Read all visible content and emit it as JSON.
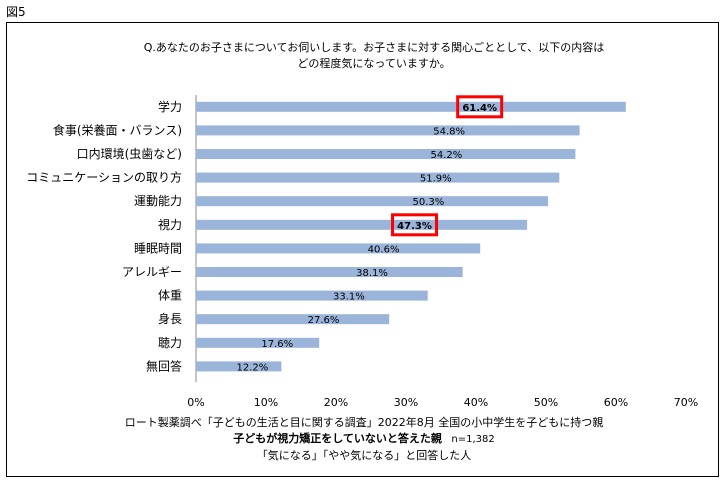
{
  "figure_label": "図5",
  "chart_data": {
    "type": "bar",
    "orientation": "horizontal",
    "title_lines": [
      "Q.あなたのお子さまについてお伺いします。お子さまに対する関心ごととして、以下の内容は",
      "どの程度気になっていますか。"
    ],
    "categories": [
      "学力",
      "食事(栄養面・バランス)",
      "口内環境(虫歯など)",
      "コミュニケーションの取り方",
      "運動能力",
      "視力",
      "睡眠時間",
      "アレルギー",
      "体重",
      "身長",
      "聴力",
      "無回答"
    ],
    "values": [
      61.4,
      54.8,
      54.2,
      51.9,
      50.3,
      47.3,
      40.6,
      38.1,
      33.1,
      27.6,
      17.6,
      12.2
    ],
    "value_labels": [
      "61.4%",
      "54.8%",
      "54.2%",
      "51.9%",
      "50.3%",
      "47.3%",
      "40.6%",
      "38.1%",
      "33.1%",
      "27.6%",
      "17.6%",
      "12.2%"
    ],
    "highlighted": [
      "学力",
      "視力"
    ],
    "xlim": [
      0,
      70
    ],
    "xticks": [
      0,
      10,
      20,
      30,
      40,
      50,
      60,
      70
    ],
    "xtick_labels": [
      "0%",
      "10%",
      "20%",
      "30%",
      "40%",
      "50%",
      "60%",
      "70%"
    ],
    "bar_color": "#9bb4d9",
    "highlight_color": "#ff0000"
  },
  "footer": {
    "line1": "ロート製薬調べ「子どもの生活と目に関する調査」2022年8月 全国の小中学生を子どもに持つ親",
    "line2_bold": "子どもが視力矯正をしていないと答えた親",
    "line2_n": "n=1,382",
    "line3": "「気になる」「やや気になる」と回答した人"
  }
}
